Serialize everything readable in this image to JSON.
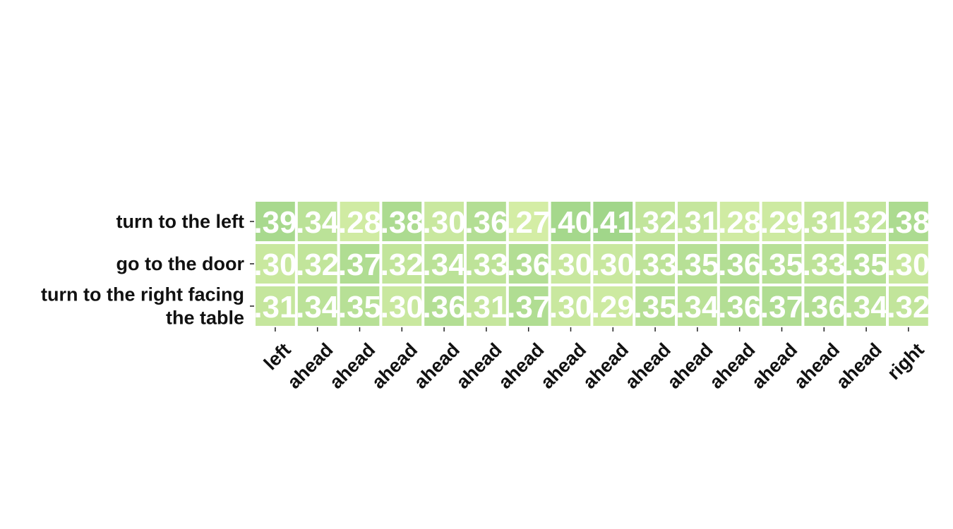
{
  "chart_data": {
    "type": "heatmap",
    "rows": [
      "turn to the left",
      "go to the door",
      "turn to the right facing the table"
    ],
    "columns": [
      "left",
      "ahead",
      "ahead",
      "ahead",
      "ahead",
      "ahead",
      "ahead",
      "ahead",
      "ahead",
      "ahead",
      "ahead",
      "ahead",
      "ahead",
      "ahead",
      "ahead",
      "right"
    ],
    "values": [
      [
        39,
        34,
        28,
        38,
        30,
        36,
        27,
        40,
        41,
        32,
        31,
        28,
        29,
        31,
        32,
        38
      ],
      [
        30,
        32,
        37,
        32,
        34,
        33,
        36,
        30,
        30,
        33,
        35,
        36,
        35,
        33,
        35,
        30
      ],
      [
        31,
        34,
        35,
        30,
        36,
        31,
        37,
        30,
        29,
        35,
        34,
        36,
        37,
        36,
        34,
        32
      ]
    ],
    "cell_labels": [
      [
        ".39",
        ".34",
        ".28",
        ".38",
        ".30",
        ".36",
        ".27",
        ".40",
        ".41",
        ".32",
        ".31",
        ".28",
        ".29",
        ".31",
        ".32",
        ".38"
      ],
      [
        ".30",
        ".32",
        ".37",
        ".32",
        ".34",
        ".33",
        ".36",
        ".30",
        ".30",
        ".33",
        ".35",
        ".36",
        ".35",
        ".33",
        ".35",
        ".30"
      ],
      [
        ".31",
        ".34",
        ".35",
        ".30",
        ".36",
        ".31",
        ".37",
        ".30",
        ".29",
        ".35",
        ".34",
        ".36",
        ".37",
        ".36",
        ".34",
        ".32"
      ]
    ],
    "colormap": {
      "low": "#d4eda5",
      "high": "#a1d68a"
    },
    "grid": false,
    "legend": "none",
    "colorbar": false
  }
}
